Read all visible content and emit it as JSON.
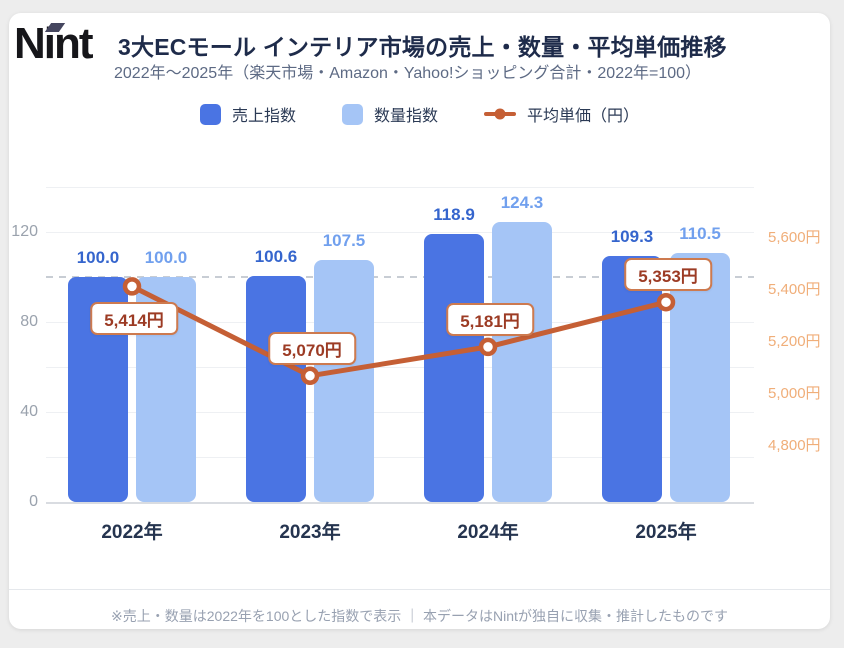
{
  "logo": {
    "text": "Nint"
  },
  "header": {
    "title": "3大ECモール インテリア市場の売上・数量・平均単価推移",
    "subtitle": "2022年～2025年（楽天市場・Amazon・Yahoo!ショッピング合計・2022年=100）"
  },
  "legend": [
    {
      "label": "売上指数",
      "color": "#4a74e3",
      "marker": "square"
    },
    {
      "label": "数量指数",
      "color": "#a5c5f6",
      "marker": "square"
    },
    {
      "label": "平均単価（円）",
      "color": "#c55f35",
      "marker": "line-dot"
    }
  ],
  "chart_data": {
    "type": "bar+line",
    "categories": [
      "2022年",
      "2023年",
      "2024年",
      "2025年"
    ],
    "series": [
      {
        "name": "売上指数",
        "type": "bar",
        "axis": "left",
        "color": "#4a74e3",
        "label_color": "#3565cd",
        "values": [
          100.0,
          100.6,
          118.9,
          109.3
        ],
        "value_labels": [
          "100.0",
          "100.6",
          "118.9",
          "109.3"
        ]
      },
      {
        "name": "数量指数",
        "type": "bar",
        "axis": "left",
        "color": "#a5c5f6",
        "label_color": "#71a0ee",
        "values": [
          100.0,
          107.5,
          124.3,
          110.5
        ],
        "value_labels": [
          "100.0",
          "107.5",
          "124.3",
          "110.5"
        ]
      },
      {
        "name": "平均単価（円）",
        "type": "line",
        "axis": "right",
        "color": "#c55f35",
        "values": [
          5414,
          5070,
          5181,
          5353
        ],
        "value_labels": [
          "5,414円",
          "5,070円",
          "5,181円",
          "5,353円"
        ]
      }
    ],
    "left_axis": {
      "ticks": [
        "0",
        "40",
        "80",
        "120"
      ],
      "tick_values": [
        0,
        40,
        80,
        120
      ],
      "range": [
        0,
        140
      ],
      "grid_step": 20,
      "dashed_reference_value": 100
    },
    "right_axis": {
      "ticks": [
        "5,600円",
        "5,400円",
        "5,200円",
        "5,000円",
        "4,800円"
      ],
      "tick_values": [
        5600,
        5400,
        5200,
        5000,
        4800
      ]
    },
    "grid": true,
    "legend_position": "top"
  },
  "footer": {
    "note": "※売上・数量は2022年を100とした指数で表示 ｜ 本データはNintが独自に収集・推計したものです"
  }
}
